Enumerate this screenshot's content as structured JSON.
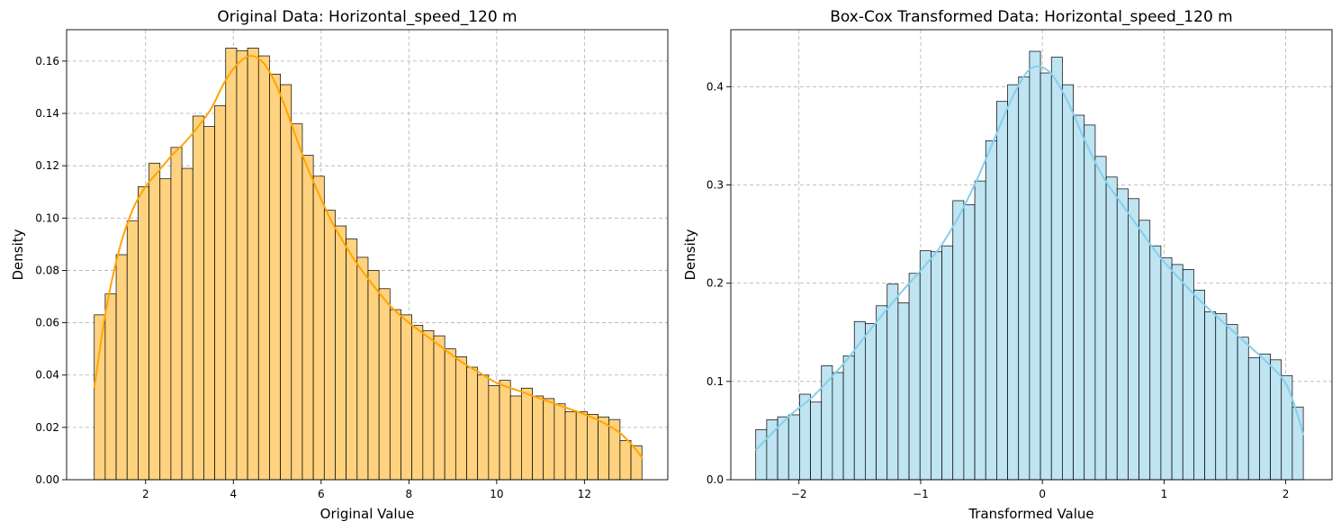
{
  "figure": {
    "background": "#ffffff"
  },
  "chart_data": [
    {
      "type": "bar",
      "subtype": "histogram-with-kde",
      "title": "Original Data: Horizontal_speed_120 m",
      "xlabel": "Original Value",
      "ylabel": "Density",
      "xlim": [
        0.2,
        13.9
      ],
      "ylim": [
        0,
        0.172
      ],
      "xticks": [
        2,
        4,
        6,
        8,
        10,
        12
      ],
      "yticks": [
        0.0,
        0.02,
        0.04,
        0.06,
        0.08,
        0.1,
        0.12,
        0.14,
        0.16
      ],
      "ytick_labels": [
        "0.00",
        "0.02",
        "0.04",
        "0.06",
        "0.08",
        "0.10",
        "0.12",
        "0.14",
        "0.16"
      ],
      "xtick_labels": [
        "2",
        "4",
        "6",
        "8",
        "10",
        "12"
      ],
      "grid": true,
      "bar_color": "#ffd27f",
      "line_color": "#ffa500",
      "bins": {
        "start": 0.83,
        "width": 0.2496
      },
      "values": [
        0.063,
        0.071,
        0.086,
        0.099,
        0.112,
        0.121,
        0.115,
        0.127,
        0.119,
        0.139,
        0.135,
        0.143,
        0.165,
        0.164,
        0.165,
        0.162,
        0.155,
        0.151,
        0.136,
        0.124,
        0.116,
        0.103,
        0.097,
        0.092,
        0.085,
        0.08,
        0.073,
        0.065,
        0.063,
        0.059,
        0.057,
        0.055,
        0.05,
        0.047,
        0.043,
        0.04,
        0.036,
        0.038,
        0.032,
        0.035,
        0.032,
        0.031,
        0.029,
        0.026,
        0.026,
        0.025,
        0.024,
        0.023,
        0.015,
        0.013
      ],
      "kde": {
        "x": [
          0.83,
          1.1,
          1.4,
          1.7,
          2.0,
          2.3,
          2.6,
          2.9,
          3.2,
          3.5,
          3.8,
          4.1,
          4.4,
          4.7,
          5.0,
          5.3,
          5.6,
          5.9,
          6.2,
          6.5,
          6.8,
          7.2,
          7.6,
          8.0,
          8.4,
          8.8,
          9.2,
          9.6,
          10.0,
          10.5,
          11.0,
          11.5,
          12.0,
          12.4,
          12.8,
          13.1,
          13.33
        ],
        "y": [
          0.035,
          0.065,
          0.088,
          0.103,
          0.112,
          0.118,
          0.124,
          0.129,
          0.135,
          0.142,
          0.152,
          0.159,
          0.162,
          0.159,
          0.15,
          0.137,
          0.123,
          0.111,
          0.1,
          0.091,
          0.083,
          0.074,
          0.066,
          0.06,
          0.055,
          0.05,
          0.045,
          0.041,
          0.037,
          0.034,
          0.031,
          0.028,
          0.025,
          0.022,
          0.018,
          0.013,
          0.008
        ]
      }
    },
    {
      "type": "bar",
      "subtype": "histogram-with-kde",
      "title": "Box-Cox Transformed Data: Horizontal_speed_120 m",
      "xlabel": "Transformed Value",
      "ylabel": "Density",
      "xlim": [
        -2.56,
        2.38
      ],
      "ylim": [
        0,
        0.458
      ],
      "xticks": [
        -2,
        -1,
        0,
        1,
        2
      ],
      "xtick_labels": [
        "−2",
        "−1",
        "0",
        "1",
        "2"
      ],
      "yticks": [
        0.0,
        0.1,
        0.2,
        0.3,
        0.4
      ],
      "ytick_labels": [
        "0.0",
        "0.1",
        "0.2",
        "0.3",
        "0.4"
      ],
      "grid": true,
      "bar_color": "#bfe4f2",
      "line_color": "#87ceeb",
      "bins": {
        "start": -2.355,
        "width": 0.08998
      },
      "values": [
        0.051,
        0.061,
        0.064,
        0.066,
        0.087,
        0.079,
        0.116,
        0.109,
        0.126,
        0.161,
        0.159,
        0.177,
        0.199,
        0.18,
        0.21,
        0.233,
        0.232,
        0.238,
        0.284,
        0.28,
        0.304,
        0.345,
        0.385,
        0.402,
        0.41,
        0.436,
        0.414,
        0.43,
        0.402,
        0.371,
        0.361,
        0.329,
        0.308,
        0.296,
        0.286,
        0.264,
        0.238,
        0.226,
        0.219,
        0.214,
        0.193,
        0.171,
        0.169,
        0.158,
        0.145,
        0.124,
        0.128,
        0.122,
        0.106,
        0.074
      ],
      "kde": {
        "x": [
          -2.355,
          -2.2,
          -2.05,
          -1.9,
          -1.75,
          -1.6,
          -1.45,
          -1.3,
          -1.15,
          -1.0,
          -0.85,
          -0.7,
          -0.55,
          -0.4,
          -0.25,
          -0.1,
          0.05,
          0.2,
          0.35,
          0.5,
          0.65,
          0.8,
          0.95,
          1.1,
          1.25,
          1.4,
          1.55,
          1.7,
          1.85,
          2.0,
          2.1,
          2.144
        ],
        "y": [
          0.03,
          0.05,
          0.068,
          0.083,
          0.102,
          0.123,
          0.147,
          0.17,
          0.192,
          0.213,
          0.235,
          0.265,
          0.302,
          0.345,
          0.388,
          0.418,
          0.416,
          0.387,
          0.345,
          0.308,
          0.281,
          0.255,
          0.229,
          0.208,
          0.188,
          0.17,
          0.153,
          0.136,
          0.119,
          0.098,
          0.065,
          0.045
        ]
      }
    }
  ]
}
